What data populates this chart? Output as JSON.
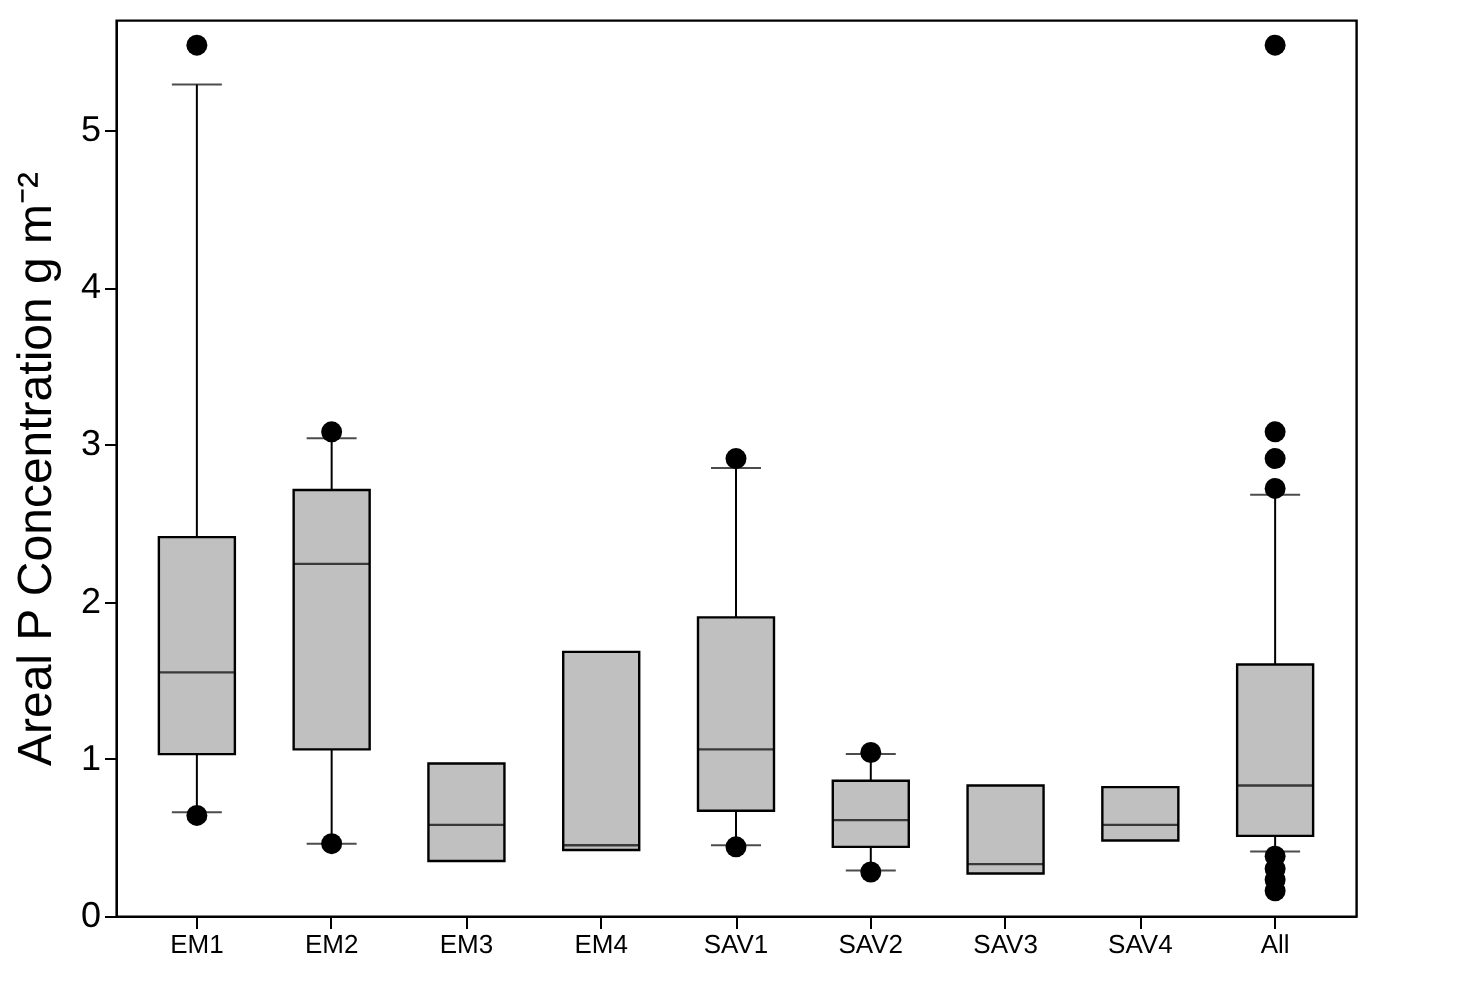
{
  "chart_data": {
    "type": "box",
    "ylabel": "Areal P Concentration  g m⁻²",
    "categories": [
      "EM1",
      "EM2",
      "EM3",
      "EM4",
      "SAV1",
      "SAV2",
      "SAV3",
      "SAV4",
      "All"
    ],
    "series": [
      {
        "color": "#c0c0c0",
        "boxes": [
          {
            "low": 0.66,
            "q1": 1.03,
            "median": 1.55,
            "q3": 2.41,
            "high": 5.29,
            "outliers": [
              0.64,
              5.54
            ]
          },
          {
            "low": 0.46,
            "q1": 1.06,
            "median": 2.24,
            "q3": 2.71,
            "high": 3.04,
            "outliers": [
              0.46,
              3.08
            ]
          },
          {
            "low": 0.35,
            "q1": 0.35,
            "median": 0.58,
            "q3": 0.97,
            "high": 0.97
          },
          {
            "low": 0.42,
            "q1": 0.42,
            "median": 0.45,
            "q3": 1.68,
            "high": 1.68
          },
          {
            "low": 0.45,
            "q1": 0.67,
            "median": 1.06,
            "q3": 1.9,
            "high": 2.85,
            "outliers": [
              0.44,
              2.91
            ]
          },
          {
            "low": 0.29,
            "q1": 0.44,
            "median": 0.61,
            "q3": 0.86,
            "high": 1.03,
            "outliers": [
              0.28,
              1.04
            ]
          },
          {
            "low": 0.27,
            "q1": 0.27,
            "median": 0.33,
            "q3": 0.83,
            "high": 0.83
          },
          {
            "low": 0.48,
            "q1": 0.48,
            "median": 0.58,
            "q3": 0.82,
            "high": 0.82
          },
          {
            "low": 0.41,
            "q1": 0.51,
            "median": 0.83,
            "q3": 1.6,
            "high": 2.68,
            "outliers": [
              0.38,
              0.3,
              0.23,
              0.16,
              2.72,
              2.91,
              3.08,
              5.54
            ]
          }
        ]
      }
    ],
    "ylim": [
      0,
      5.7
    ],
    "yticks": [
      0,
      1,
      2,
      3,
      4,
      5
    ],
    "grid": false
  }
}
